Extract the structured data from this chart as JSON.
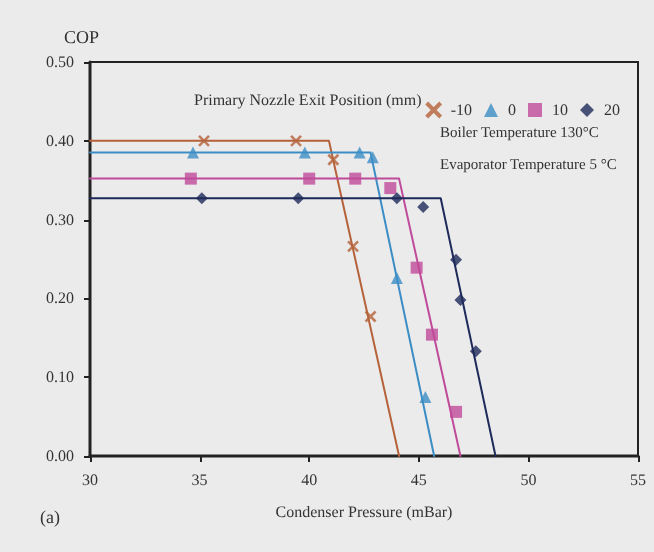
{
  "chart_data": {
    "type": "scatter",
    "ylabel": "COP",
    "xlabel": "Condenser Pressure (mBar)",
    "legend_title": "Primary Nozzle Exit Position (mm)",
    "annotations": [
      "Boiler Temperature 130°C",
      "Evaporator Temperature 5 °C",
      "(a)"
    ],
    "xlim": [
      30,
      55
    ],
    "xticks": [
      30,
      35,
      40,
      45,
      50,
      55
    ],
    "ylim": [
      0,
      0.5
    ],
    "yticks": [
      {
        "value": 0,
        "label": "0.00"
      },
      {
        "value": 0.1,
        "label": "0.10"
      },
      {
        "value": 0.2,
        "label": "0.20"
      },
      {
        "value": 0.3,
        "label": "0.30"
      },
      {
        "value": 0.4,
        "label": "0.40"
      },
      {
        "value": 0.5,
        "label": "0.50"
      }
    ],
    "grid": false,
    "legend": "top right",
    "series": [
      {
        "type": "line",
        "color": "#b5623a",
        "marker": "none",
        "line_style": "solid",
        "x": [
          30,
          40.9,
          44.1
        ],
        "values": [
          0.4,
          0.4,
          0
        ]
      },
      {
        "type": "line",
        "color": "#3c8dc5",
        "marker": "none",
        "line_style": "solid",
        "x": [
          30,
          42.8,
          45.7
        ],
        "values": [
          0.385,
          0.385,
          0
        ]
      },
      {
        "type": "line",
        "color": "#c04a9a",
        "marker": "none",
        "line_style": "solid",
        "x": [
          30,
          44.1,
          46.9
        ],
        "values": [
          0.352,
          0.352,
          0
        ]
      },
      {
        "type": "line",
        "color": "#1e2a5a",
        "marker": "none",
        "line_style": "solid",
        "x": [
          30,
          46.0,
          48.5
        ],
        "values": [
          0.327,
          0.327,
          0
        ]
      },
      {
        "name": "-10",
        "color": "#b5623a",
        "marker": "cross",
        "x": [
          35.2,
          39.4,
          41.1,
          42.0,
          42.8
        ],
        "values": [
          0.4,
          0.4,
          0.376,
          0.266,
          0.177
        ]
      },
      {
        "name": "0",
        "color": "#3c8dc5",
        "marker": "triangle",
        "x": [
          34.7,
          39.8,
          42.3,
          42.9,
          44.0,
          45.3
        ],
        "values": [
          0.385,
          0.385,
          0.385,
          0.379,
          0.226,
          0.075
        ]
      },
      {
        "name": "10",
        "color": "#c04a9a",
        "marker": "square",
        "x": [
          34.6,
          40.0,
          42.1,
          43.7,
          44.9,
          45.6,
          46.7
        ],
        "values": [
          0.352,
          0.352,
          0.352,
          0.34,
          0.239,
          0.154,
          0.056
        ]
      },
      {
        "name": "20",
        "color": "#1e2a5a",
        "marker": "diamond",
        "x": [
          35.1,
          39.5,
          44.0,
          45.2,
          46.7,
          46.9,
          47.6
        ],
        "values": [
          0.327,
          0.327,
          0.327,
          0.316,
          0.249,
          0.198,
          0.133
        ]
      }
    ]
  }
}
